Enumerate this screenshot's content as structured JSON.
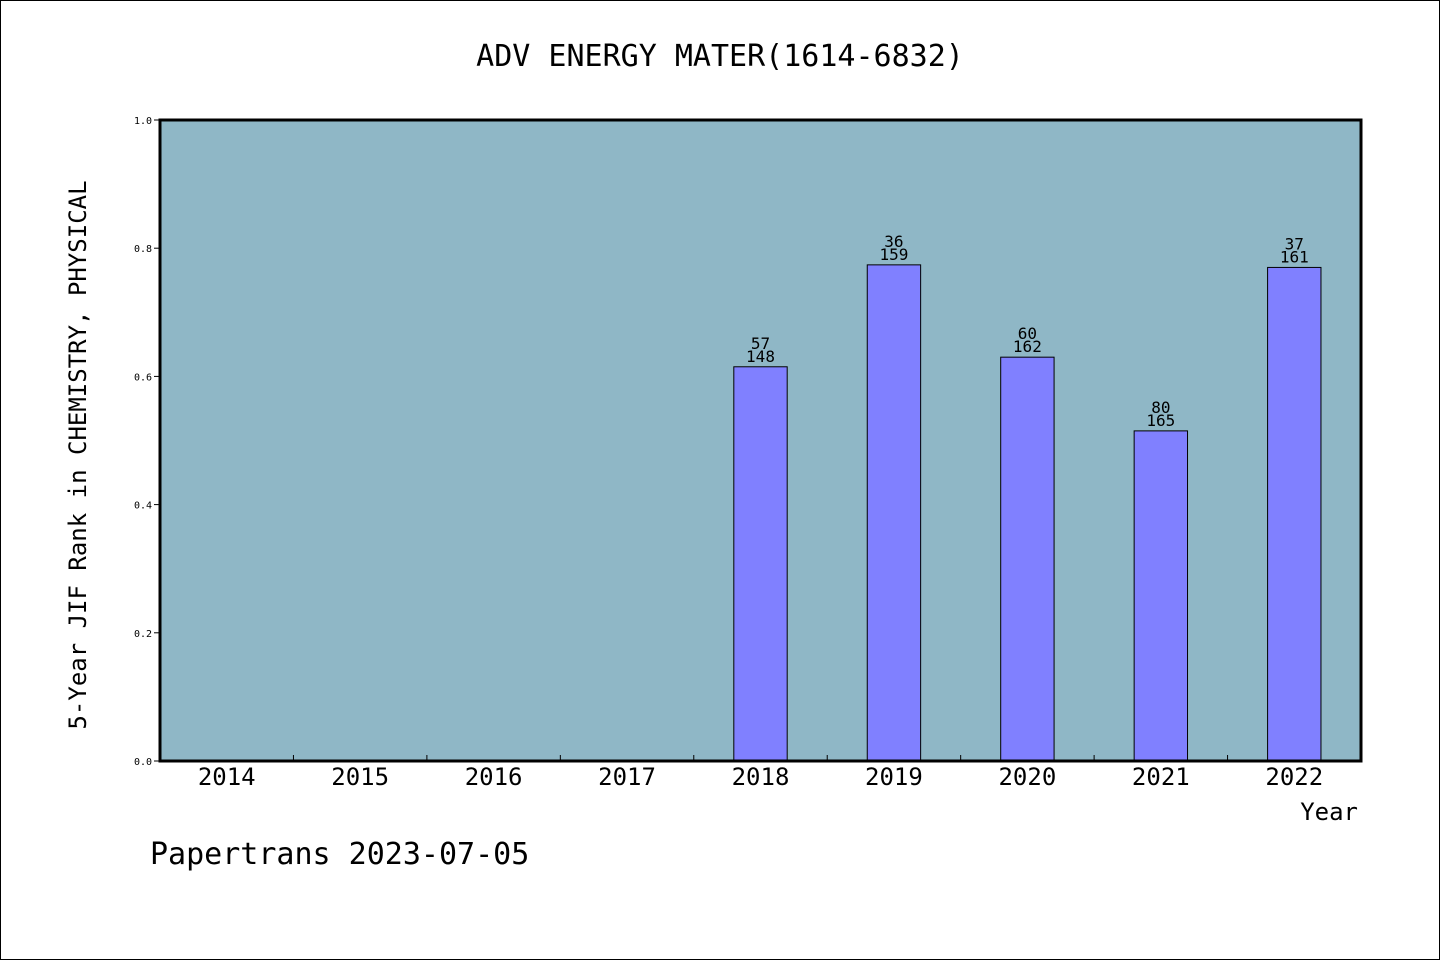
{
  "chart_data": {
    "type": "bar",
    "title": "ADV ENERGY MATER(1614-6832)",
    "xlabel": "Year",
    "ylabel": "5-Year JIF Rank in CHEMISTRY, PHYSICAL",
    "ylim": [
      0,
      1.0
    ],
    "y_ticks": [
      "0.0",
      "0.2",
      "0.4",
      "0.6",
      "0.8",
      "1.0"
    ],
    "categories": [
      "2014",
      "2015",
      "2016",
      "2017",
      "2018",
      "2019",
      "2020",
      "2021",
      "2022"
    ],
    "values": [
      null,
      null,
      null,
      null,
      0.615,
      0.774,
      0.63,
      0.515,
      0.77
    ],
    "labels": [
      {
        "category": "2018",
        "rank": "57",
        "total": "148"
      },
      {
        "category": "2019",
        "rank": "36",
        "total": "159"
      },
      {
        "category": "2020",
        "rank": "60",
        "total": "162"
      },
      {
        "category": "2021",
        "rank": "80",
        "total": "165"
      },
      {
        "category": "2022",
        "rank": "37",
        "total": "161"
      }
    ],
    "grid": false,
    "legend": "none",
    "colors": {
      "plot_background": "#8fb7c6",
      "bar_fill": "#8080ff",
      "axis": "#000000"
    }
  },
  "footer": "Papertrans 2023-07-05"
}
